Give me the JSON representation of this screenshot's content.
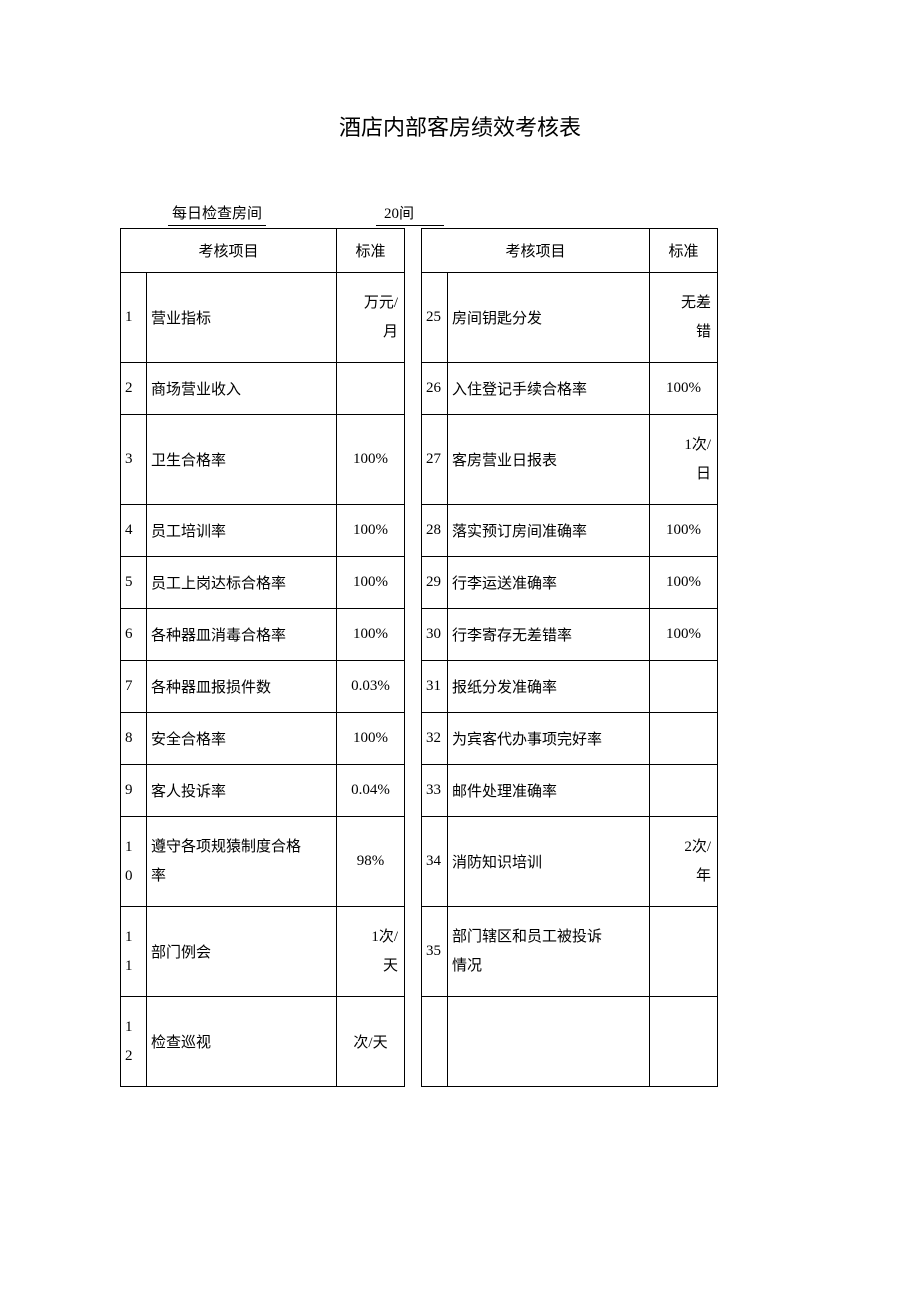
{
  "title": "酒店内部客房绩效考核表",
  "inspection": {
    "label": "每日检查房间",
    "value": "20间"
  },
  "headers": {
    "item": "考核项目",
    "std": "标准"
  },
  "left": [
    {
      "num": "1",
      "item": "营业指标",
      "std_lines": [
        "万元/",
        "月"
      ],
      "tall": true
    },
    {
      "num": "2",
      "item": "商场营业收入",
      "std": ""
    },
    {
      "num": "3",
      "item": "卫生合格率",
      "std": "100%",
      "tall": true
    },
    {
      "num": "4",
      "item": "员工培训率",
      "std": "100%"
    },
    {
      "num": "5",
      "item": "员工上岗达标合格率",
      "std": "100%"
    },
    {
      "num": "6",
      "item": "各种器皿消毒合格率",
      "std": "100%"
    },
    {
      "num": "7",
      "item": "各种器皿报损件数",
      "std": "0.03%"
    },
    {
      "num": "8",
      "item": "安全合格率",
      "std": "100%"
    },
    {
      "num": "9",
      "item": "客人投诉率",
      "std": "0.04%"
    },
    {
      "num_stack": [
        "1",
        "0"
      ],
      "item_lines": [
        "遵守各项规猿制度合格",
        "率"
      ],
      "std": "98%",
      "tall": true
    },
    {
      "num_stack": [
        "1",
        "1"
      ],
      "item": "部门例会",
      "std_lines": [
        "1次/",
        "天"
      ],
      "tall": true
    },
    {
      "num_stack": [
        "1",
        "2"
      ],
      "item": "检查巡视",
      "std": "次/天",
      "tall": true
    }
  ],
  "right": [
    {
      "num": "25",
      "item": "房间钥匙分发",
      "std_lines": [
        "无差",
        "错"
      ],
      "tall": true
    },
    {
      "num": "26",
      "item": "入住登记手续合格率",
      "std": "100%"
    },
    {
      "num": "27",
      "item": "客房营业日报表",
      "std_lines": [
        "1次/",
        "日"
      ],
      "tall": true
    },
    {
      "num": "28",
      "item": "落实预订房间准确率",
      "std": "100%"
    },
    {
      "num": "29",
      "item": "行李运送准确率",
      "std": "100%"
    },
    {
      "num": "30",
      "item": "行李寄存无差错率",
      "std": "100%"
    },
    {
      "num": "31",
      "item": "报纸分发准确率",
      "std": ""
    },
    {
      "num": "32",
      "item": "为宾客代办事项完好率",
      "std": ""
    },
    {
      "num": "33",
      "item": "邮件处理准确率",
      "std": ""
    },
    {
      "num": "34",
      "item": "消防知识培训",
      "std_lines": [
        "2次/",
        "年"
      ],
      "tall": true
    },
    {
      "num": "35",
      "item_lines": [
        "部门辖区和员工被投诉",
        "情况"
      ],
      "std": "",
      "tall": true
    },
    {
      "num": "",
      "item": "",
      "std": "",
      "tall": true
    }
  ]
}
